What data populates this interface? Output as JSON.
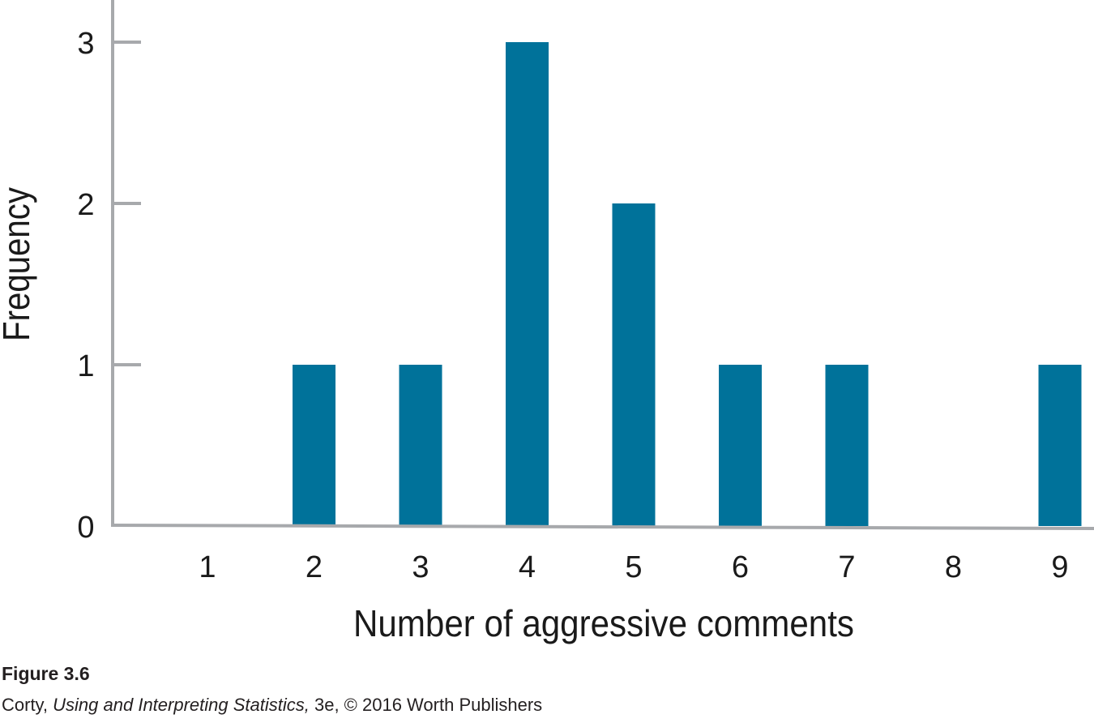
{
  "chart_data": {
    "type": "bar",
    "categories": [
      "1",
      "2",
      "3",
      "4",
      "5",
      "6",
      "7",
      "8",
      "9"
    ],
    "values": [
      0,
      1,
      1,
      3,
      2,
      1,
      1,
      0,
      1
    ],
    "xlabel": "Number of aggressive comments",
    "ylabel": "Frequency",
    "yticks": [
      "0",
      "1",
      "2",
      "3"
    ],
    "ylim": [
      0,
      3
    ],
    "grid": false,
    "bar_color": "#00729a",
    "axis_color": "#a7a9ac"
  },
  "caption": {
    "figure_label": "Figure 3.6",
    "credit_author": "Corty, ",
    "credit_title": "Using and Interpreting Statistics,",
    "credit_rest": " 3e, © 2016 Worth Publishers"
  }
}
